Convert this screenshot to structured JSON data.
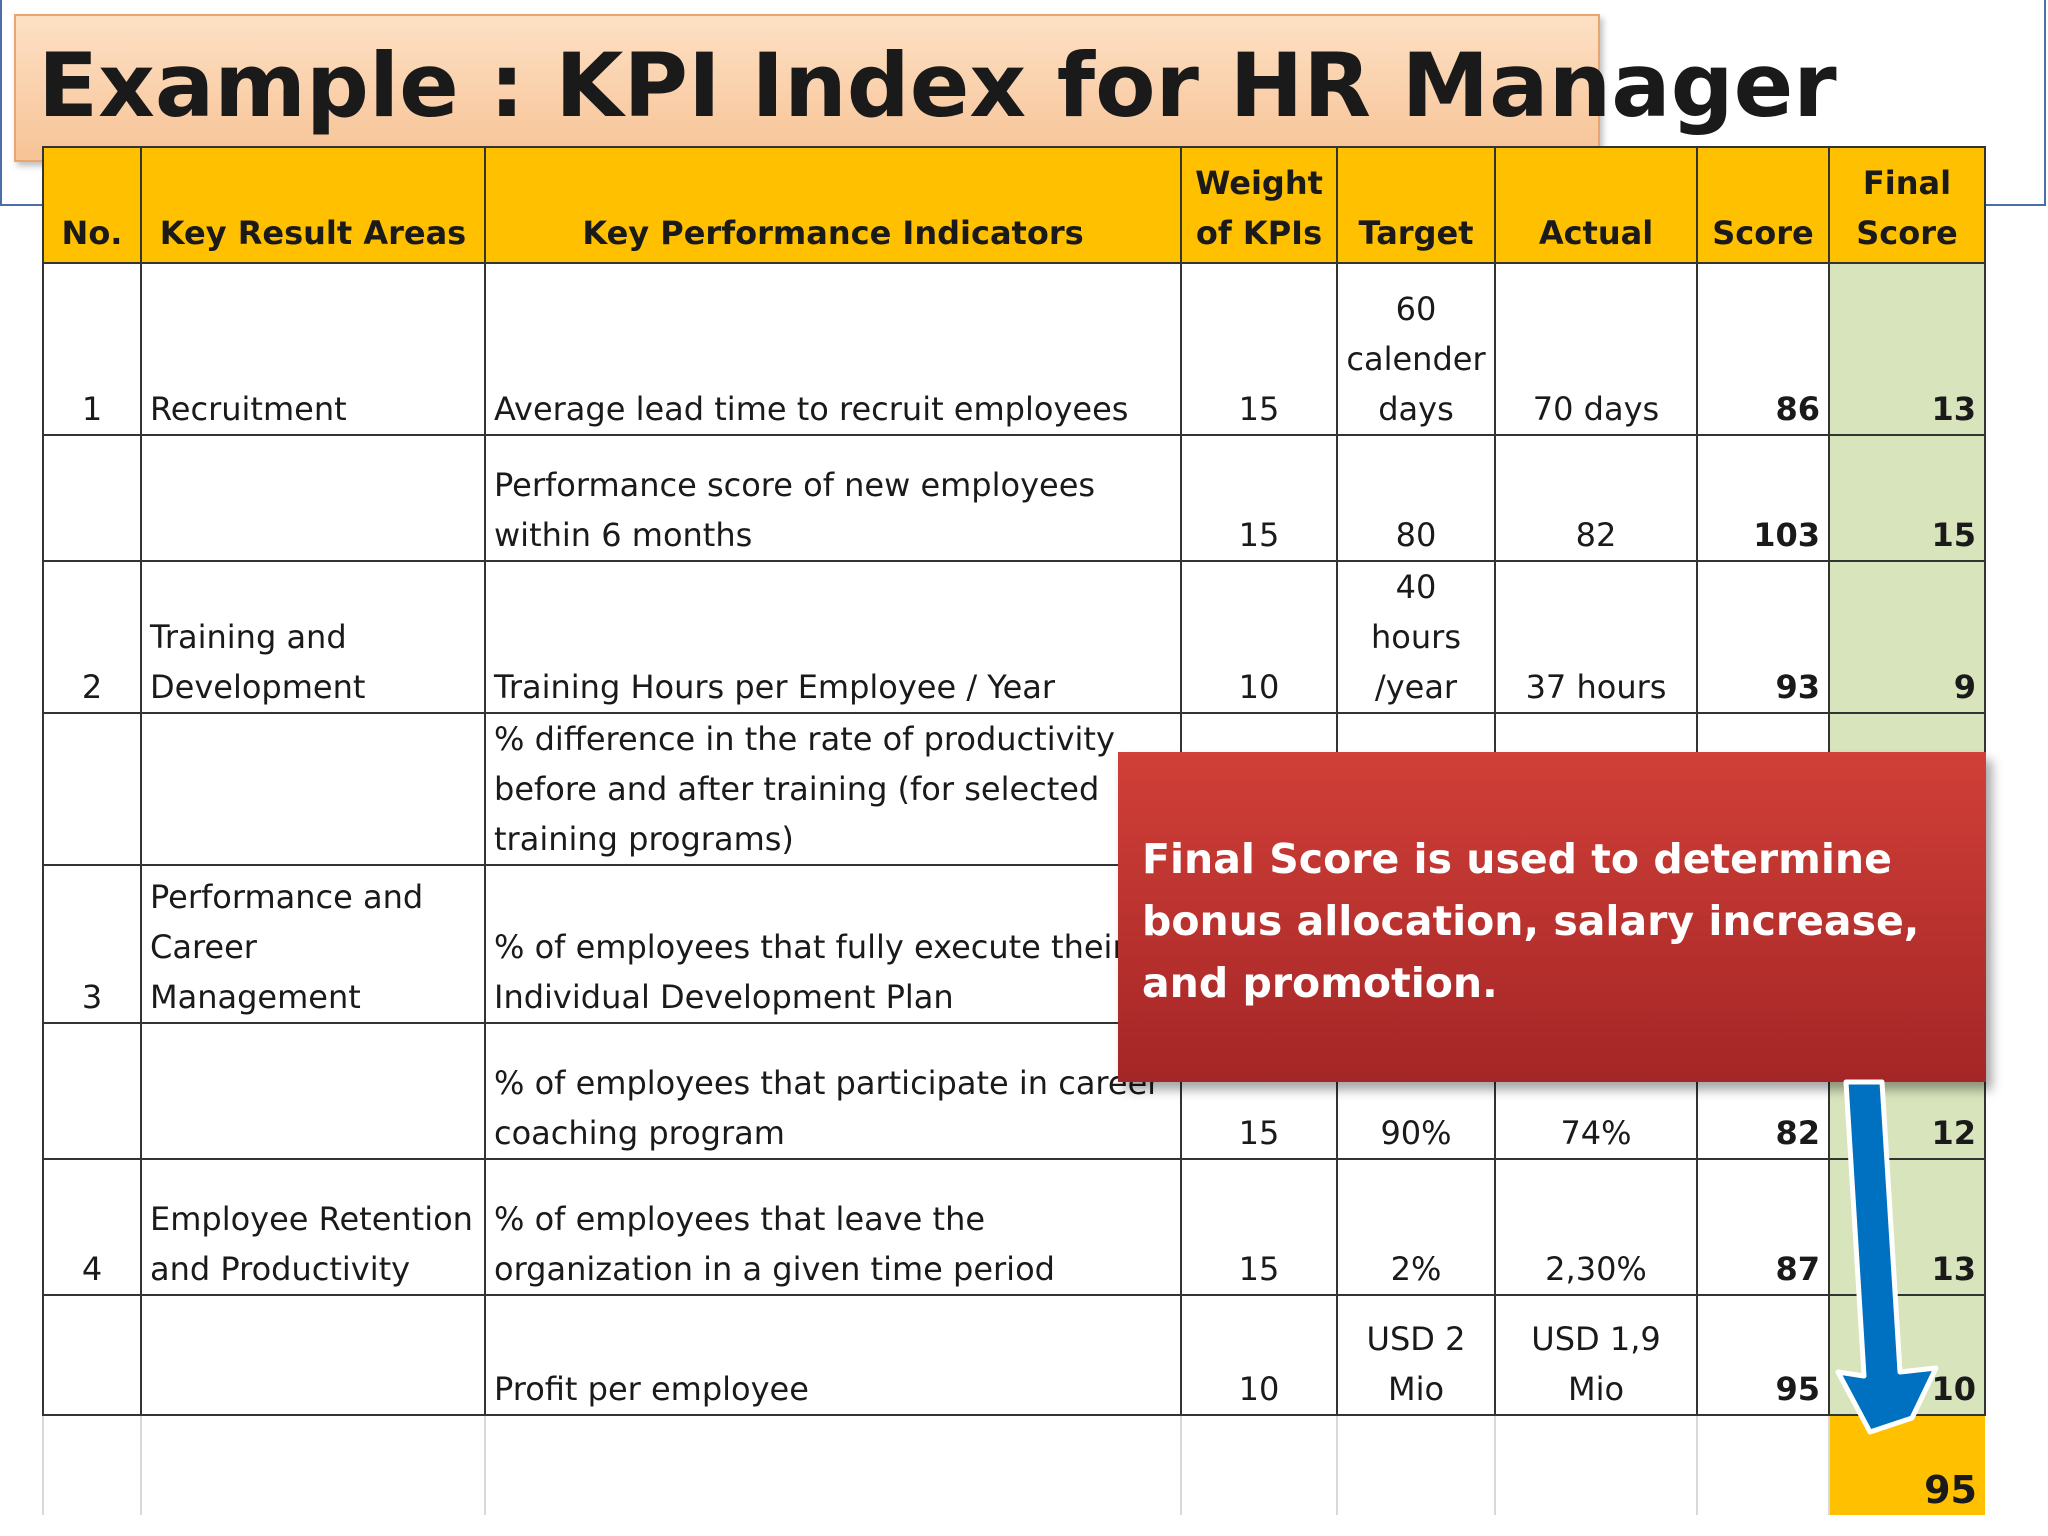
{
  "title": "Example : KPI Index for HR Manager",
  "headers": {
    "no": "No.",
    "kra": "Key Result Areas",
    "kpi": "Key Performance Indicators",
    "weight": "Weight of KPIs",
    "target": "Target",
    "actual": "Actual",
    "score": "Score",
    "final": "Final Score"
  },
  "rows": [
    {
      "no": "1",
      "kra": "Recruitment",
      "kpi": "Average lead time to recruit employees",
      "weight": "15",
      "target": "60 calender days",
      "actual": "70 days",
      "score": "86",
      "final": "13"
    },
    {
      "no": "",
      "kra": "",
      "kpi": "Performance score of new employees within 6 months",
      "weight": "15",
      "target": "80",
      "actual": "82",
      "score": "103",
      "final": "15"
    },
    {
      "no": "2",
      "kra": "Training and Development",
      "kpi": "Training Hours per Employee / Year",
      "weight": "10",
      "target": "40 hours /year",
      "actual": "37 hours",
      "score": "93",
      "final": "9"
    },
    {
      "no": "",
      "kra": "",
      "kpi": "% difference in the rate of productivity before and after training (for selected training programs)",
      "weight": "",
      "target": "",
      "actual": "",
      "score": "",
      "final": ""
    },
    {
      "no": "3",
      "kra": "Performance and Career Management",
      "kpi": "% of employees that fully execute their Individual Development Plan",
      "weight": "",
      "target": "",
      "actual": "",
      "score": "",
      "final": ""
    },
    {
      "no": "",
      "kra": "",
      "kpi": "% of employees that participate in career coaching program",
      "weight": "15",
      "target": "90%",
      "actual": "74%",
      "score": "82",
      "final": "12"
    },
    {
      "no": "4",
      "kra": "Employee Retention and Productivity",
      "kpi": "% of employees that leave the organization in a given time period",
      "weight": "15",
      "target": "2%",
      "actual": "2,30%",
      "score": "87",
      "final": "13"
    },
    {
      "no": "",
      "kra": "",
      "kpi": "Profit per employee",
      "weight": "10",
      "target": "USD 2 Mio",
      "actual": "USD 1,9 Mio",
      "score": "95",
      "final": "10"
    }
  ],
  "total_final_score": "95",
  "callout": "Final Score is used to determine bonus allocation, salary increase, and promotion.",
  "colors": {
    "header_bg": "#ffc000",
    "final_score_bg": "#d8e4bc",
    "callout_bg": "#c0362f",
    "arrow": "#0070c0",
    "title_bg": "#f8c9a0"
  }
}
